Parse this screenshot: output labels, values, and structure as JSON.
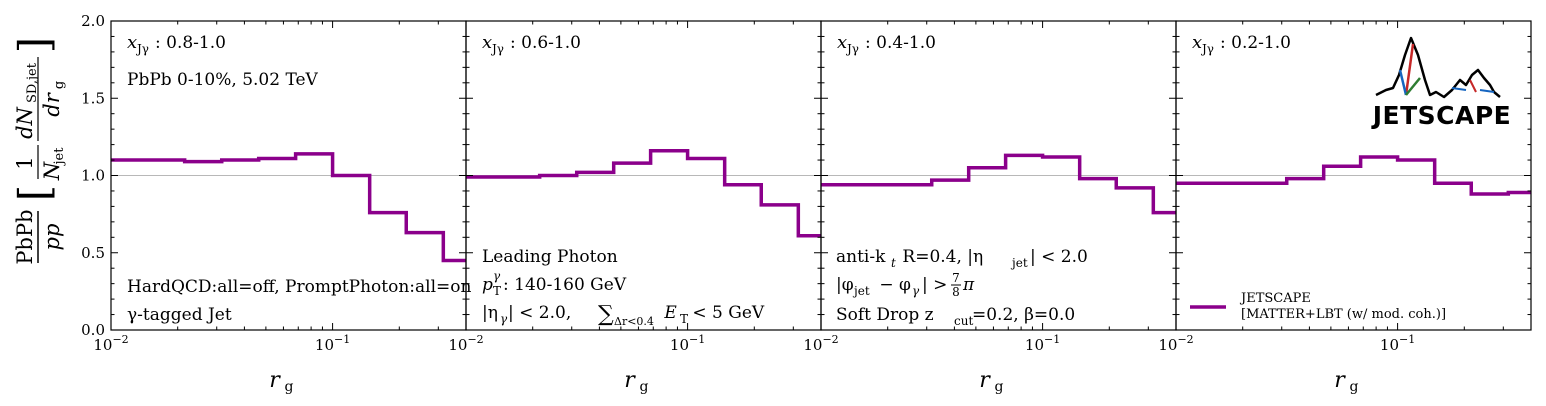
{
  "chart_data": {
    "type": "line",
    "style": "step",
    "ylabel": "PbPb/pp [ (1/N_jet) dN_SD,jet / dr_g ]",
    "ylabel_parts": {
      "ratio_num": "PbPb",
      "ratio_den": "pp",
      "frac_num": "1",
      "frac_den": "N",
      "frac_den_sub": "jet",
      "deriv_num": "dN",
      "deriv_num_sub": "SD,jet",
      "deriv_den": "dr",
      "deriv_den_sub": "g"
    },
    "xlabel": "r",
    "xlabel_sub": "g",
    "xscale": "log",
    "xlim": [
      0.01,
      0.4
    ],
    "ylim": [
      0.0,
      2.0
    ],
    "y_ticks": [
      "0.0",
      "0.5",
      "1.0",
      "1.5",
      "2.0"
    ],
    "x_tick_base": "10",
    "x_ticks": [
      {
        "value": 0.01,
        "exp": "−2"
      },
      {
        "value": 0.1,
        "exp": "−1"
      }
    ],
    "reference_line": 1.0,
    "series_color": "#8b008b",
    "bin_edges": [
      0.01,
      0.0215,
      0.0316,
      0.0464,
      0.0681,
      0.1,
      0.147,
      0.215,
      0.316,
      0.4
    ],
    "panels": [
      {
        "title_var": "x",
        "title_sub": "Jγ",
        "title_range": ": 0.8-1.0",
        "values": [
          1.1,
          1.09,
          1.1,
          1.11,
          1.14,
          1.0,
          0.76,
          0.63,
          0.45
        ]
      },
      {
        "title_var": "x",
        "title_sub": "Jγ",
        "title_range": ": 0.6-1.0",
        "values": [
          0.99,
          1.0,
          1.02,
          1.08,
          1.16,
          1.11,
          0.94,
          0.81,
          0.61
        ]
      },
      {
        "title_var": "x",
        "title_sub": "Jγ",
        "title_range": ": 0.4-1.0",
        "values": [
          0.94,
          0.94,
          0.97,
          1.05,
          1.13,
          1.12,
          0.98,
          0.92,
          0.76
        ]
      },
      {
        "title_var": "x",
        "title_sub": "Jγ",
        "title_range": ": 0.2-1.0",
        "values": [
          0.95,
          0.95,
          0.98,
          1.06,
          1.12,
          1.1,
          0.95,
          0.88,
          0.89
        ]
      }
    ],
    "annotations": {
      "system": "PbPb 0-10%, 5.02 TeV",
      "pythia_settings": "HardQCD:all=off, PromptPhoton:all=on",
      "jet_type": "γ-tagged Jet",
      "photon_title": "Leading Photon",
      "photon_pt_var": "p",
      "photon_pt_sup": "γ",
      "photon_pt_sub": "T",
      "photon_pt_range": ": 140-160 GeV",
      "photon_eta": "|η",
      "photon_eta_sub": "γ",
      "photon_eta_rest": "| < 2.0, ",
      "photon_iso_sum": "∑",
      "photon_iso_sub": "Δr<0.4",
      "photon_iso_var": " E",
      "photon_iso_var_sub": "T",
      "photon_iso_rest": " < 5 GeV",
      "jet_algo": "anti-k",
      "jet_algo_sub": "t",
      "jet_R": " R=0.4, |η",
      "jet_eta_sub": "jet",
      "jet_eta_rest": "| < 2.0",
      "dphi_a": "|φ",
      "dphi_sub1": "jet",
      "dphi_b": " − φ",
      "dphi_sub2": "γ",
      "dphi_c": "| > ",
      "dphi_num": "7",
      "dphi_den": "8",
      "dphi_pi": "π",
      "softdrop_a": "Soft Drop z",
      "softdrop_sub": "cut",
      "softdrop_b": "=0.2, β=0.0"
    },
    "legend": {
      "position": "lower-right",
      "line1": "JETSCAPE",
      "line2": "[MATTER+LBT (w/ mod. coh.)]"
    },
    "logo": {
      "text": "JETSCAPE"
    }
  }
}
